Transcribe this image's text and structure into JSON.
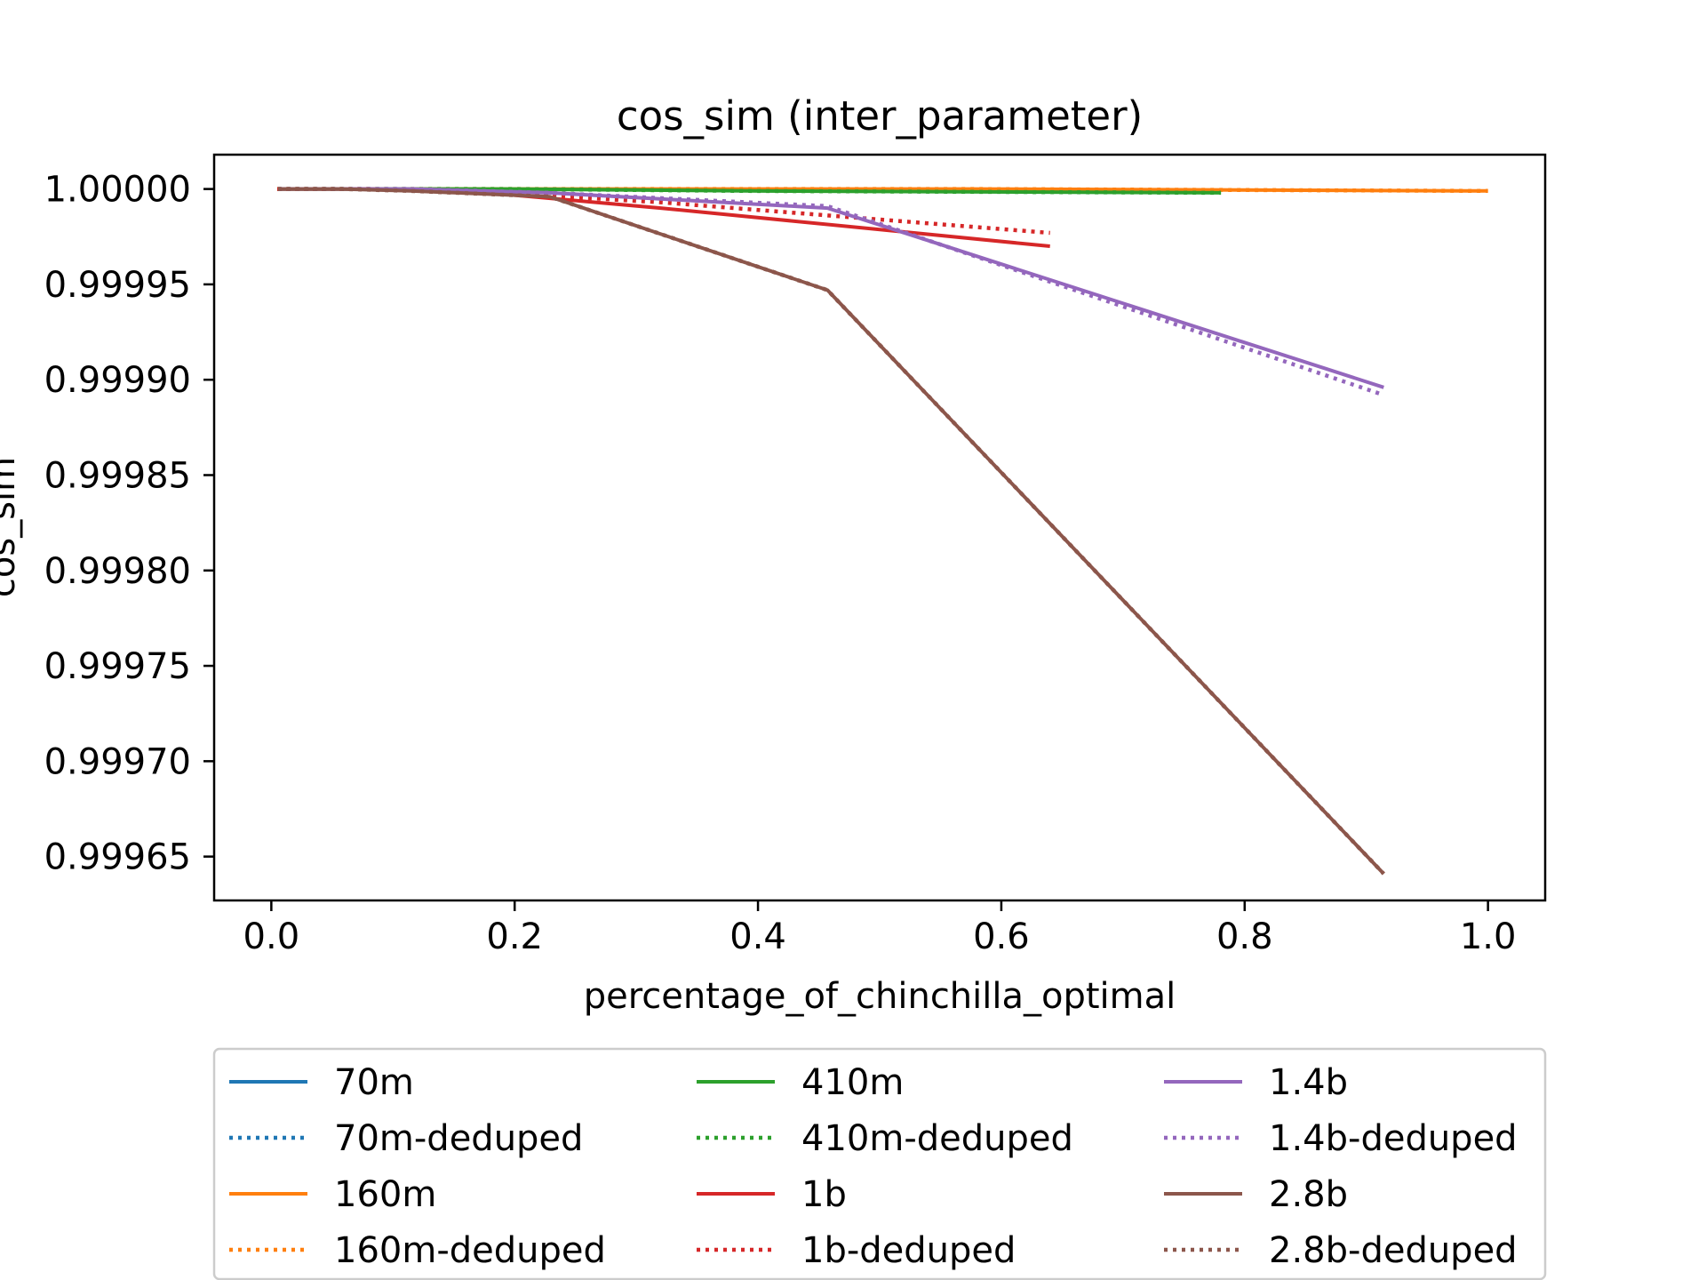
{
  "chart_data": {
    "type": "line",
    "title": "cos_sim (inter_parameter)",
    "xlabel": "percentage_of_chinchilla_optimal",
    "ylabel": "cos_sim",
    "xlim": [
      -0.047,
      1.047
    ],
    "ylim": [
      0.999627,
      1.000018
    ],
    "xticks": [
      0.0,
      0.2,
      0.4,
      0.6,
      0.8,
      1.0
    ],
    "xtick_labels": [
      "0.0",
      "0.2",
      "0.4",
      "0.6",
      "0.8",
      "1.0"
    ],
    "yticks": [
      0.99965,
      0.9997,
      0.99975,
      0.9998,
      0.99985,
      0.9999,
      0.99995,
      1.0
    ],
    "ytick_labels": [
      "0.99965",
      "0.99970",
      "0.99975",
      "0.99980",
      "0.99985",
      "0.99990",
      "0.99995",
      "1.00000"
    ],
    "grid": false,
    "legend_position": "below",
    "series": [
      {
        "name": "70m",
        "color": "#1f77b4",
        "style": "solid",
        "x": [
          0.0057,
          0.0571,
          0.1143
        ],
        "y": [
          1.0,
          1.0,
          1.0
        ]
      },
      {
        "name": "70m-deduped",
        "color": "#1f77b4",
        "style": "dotted",
        "x": [
          0.0057,
          0.0571,
          0.1143
        ],
        "y": [
          1.0,
          1.0,
          1.0
        ]
      },
      {
        "name": "160m",
        "color": "#ff7f0e",
        "style": "solid",
        "x": [
          0.005,
          0.0357,
          0.0714,
          0.1429,
          0.2857,
          0.5714,
          1.0
        ],
        "y": [
          1.0,
          1.0,
          1.0,
          1.0,
          1.0,
          1.0,
          0.999999
        ]
      },
      {
        "name": "160m-deduped",
        "color": "#ff7f0e",
        "style": "dotted",
        "x": [
          0.005,
          0.0357,
          0.0714,
          0.1429,
          0.2857,
          0.5714,
          1.0
        ],
        "y": [
          1.0,
          1.0,
          1.0,
          1.0,
          1.0,
          1.0,
          0.999999
        ]
      },
      {
        "name": "410m",
        "color": "#2ca02c",
        "style": "solid",
        "x": [
          0.005,
          0.0488,
          0.0976,
          0.1951,
          0.3902,
          0.7805
        ],
        "y": [
          1.0,
          1.0,
          1.0,
          1.0,
          0.999999,
          0.999998
        ]
      },
      {
        "name": "410m-deduped",
        "color": "#2ca02c",
        "style": "dotted",
        "x": [
          0.005,
          0.0488,
          0.0976,
          0.1951,
          0.3902,
          0.7805
        ],
        "y": [
          1.0,
          1.0,
          1.0,
          1.0,
          0.999999,
          0.999998
        ]
      },
      {
        "name": "1b",
        "color": "#d62728",
        "style": "solid",
        "x": [
          0.005,
          0.02,
          0.04,
          0.08,
          0.16,
          0.32,
          0.64
        ],
        "y": [
          1.0,
          1.0,
          1.0,
          1.0,
          0.999999,
          0.99999,
          0.99997
        ]
      },
      {
        "name": "1b-deduped",
        "color": "#d62728",
        "style": "dotted",
        "x": [
          0.005,
          0.02,
          0.04,
          0.08,
          0.16,
          0.32,
          0.64
        ],
        "y": [
          1.0,
          1.0,
          1.0,
          1.0,
          0.999999,
          0.999993,
          0.999977
        ]
      },
      {
        "name": "1.4b",
        "color": "#9467bd",
        "style": "solid",
        "x": [
          0.0057,
          0.0571,
          0.1143,
          0.2286,
          0.4571,
          0.9143
        ],
        "y": [
          1.0,
          1.0,
          1.0,
          0.999998,
          0.99999,
          0.999896
        ]
      },
      {
        "name": "1.4b-deduped",
        "color": "#9467bd",
        "style": "dotted",
        "x": [
          0.0057,
          0.0571,
          0.1143,
          0.2286,
          0.4571,
          0.9143
        ],
        "y": [
          1.0,
          1.0,
          1.0,
          0.999998,
          0.999991,
          0.999892
        ]
      },
      {
        "name": "2.8b",
        "color": "#8c564b",
        "style": "solid",
        "x": [
          0.0057,
          0.0571,
          0.1143,
          0.2286,
          0.4571,
          0.9143
        ],
        "y": [
          1.0,
          1.0,
          0.999999,
          0.999996,
          0.999947,
          0.999641
        ]
      },
      {
        "name": "2.8b-deduped",
        "color": "#8c564b",
        "style": "dotted",
        "x": [
          0.0057,
          0.0571,
          0.1143,
          0.2286,
          0.4571,
          0.9143
        ],
        "y": [
          1.0,
          1.0,
          0.999999,
          0.999996,
          0.999947,
          0.999641
        ]
      }
    ]
  }
}
